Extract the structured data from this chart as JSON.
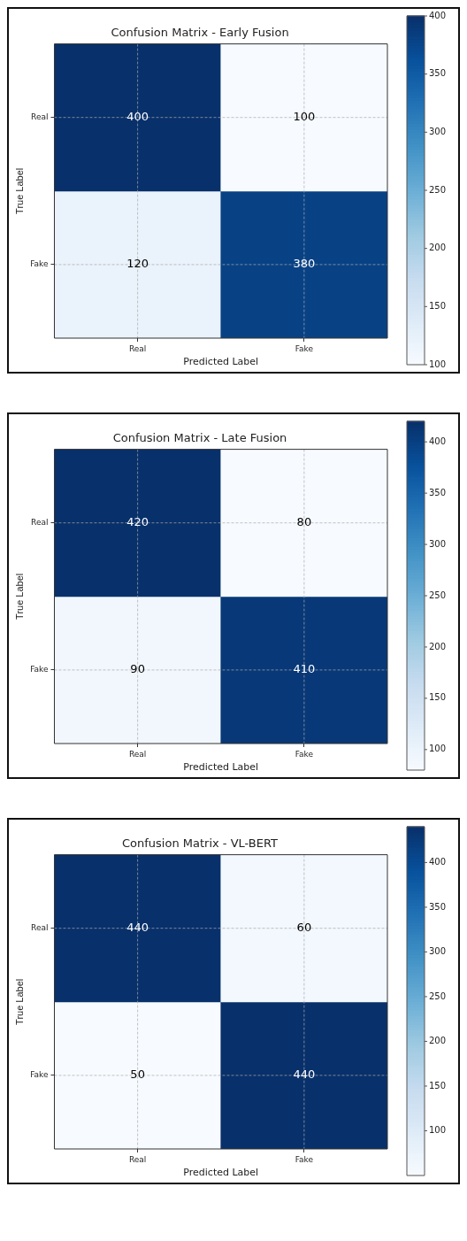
{
  "chart_data": [
    {
      "type": "heatmap",
      "title": "Confusion Matrix - Early Fusion",
      "xlabel": "Predicted Label",
      "ylabel": "True Label",
      "categories": [
        "Real",
        "Fake"
      ],
      "y_categories": [
        "Real",
        "Fake"
      ],
      "cells": [
        [
          400,
          100
        ],
        [
          120,
          380
        ]
      ],
      "clim": [
        100,
        400
      ],
      "cticks": [
        100,
        150,
        200,
        250,
        300,
        350,
        400
      ],
      "grid": true,
      "data_labels": true
    },
    {
      "type": "heatmap",
      "title": "Confusion Matrix - Late Fusion",
      "xlabel": "Predicted Label",
      "ylabel": "True Label",
      "categories": [
        "Real",
        "Fake"
      ],
      "y_categories": [
        "Real",
        "Fake"
      ],
      "cells": [
        [
          420,
          80
        ],
        [
          90,
          410
        ]
      ],
      "clim": [
        80,
        420
      ],
      "cticks": [
        100,
        150,
        200,
        250,
        300,
        350,
        400
      ],
      "grid": true,
      "data_labels": true
    },
    {
      "type": "heatmap",
      "title": "Confusion Matrix - VL-BERT",
      "xlabel": "Predicted Label",
      "ylabel": "True Label",
      "categories": [
        "Real",
        "Fake"
      ],
      "y_categories": [
        "Real",
        "Fake"
      ],
      "cells": [
        [
          440,
          60
        ],
        [
          50,
          440
        ]
      ],
      "clim": [
        50,
        440
      ],
      "cticks": [
        100,
        150,
        200,
        250,
        300,
        350,
        400
      ],
      "grid": true,
      "data_labels": true
    }
  ]
}
